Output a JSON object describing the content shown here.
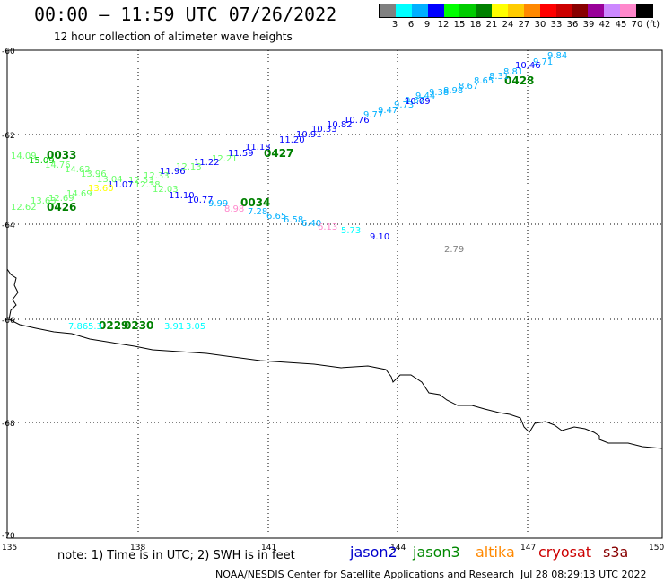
{
  "header": {
    "title": "00:00 – 11:59 UTC 07/26/2022",
    "subtitle": "12 hour collection of altimeter wave heights"
  },
  "legend": {
    "unit": "(ft)",
    "colors": [
      "#808080",
      "#00ffff",
      "#00b0ff",
      "#0000ff",
      "#00ff00",
      "#00cc00",
      "#008000",
      "#ffff00",
      "#ffcc00",
      "#ff8800",
      "#ff0000",
      "#cc0000",
      "#880000",
      "#990099",
      "#cc88ff",
      "#ff88cc",
      "#000000"
    ],
    "labels": [
      "3",
      "6",
      "9",
      "12",
      "15",
      "18",
      "21",
      "24",
      "27",
      "30",
      "33",
      "36",
      "39",
      "42",
      "45",
      "70"
    ]
  },
  "axes": {
    "lat_labels": [
      "-60",
      "-62",
      "-64",
      "-66",
      "-68",
      "-70"
    ],
    "lon_labels": [
      "135",
      "138",
      "141",
      "144",
      "147",
      "150"
    ]
  },
  "map": {
    "time_tags": [
      {
        "text": "0033",
        "color": "#008000"
      },
      {
        "text": "0426",
        "color": "#008000"
      },
      {
        "text": "0427",
        "color": "#008000"
      },
      {
        "text": "0034",
        "color": "#008000"
      },
      {
        "text": "0428",
        "color": "#008000"
      },
      {
        "text": "0229",
        "color": "#008000"
      },
      {
        "text": "0230",
        "color": "#008000"
      }
    ],
    "wave_heights": [
      {
        "text": "9.84",
        "color": "#00b0ff"
      },
      {
        "text": "9.71",
        "color": "#00b0ff"
      },
      {
        "text": "10.46",
        "color": "#0000ff"
      },
      {
        "text": "8.81",
        "color": "#00b0ff"
      },
      {
        "text": "8.31",
        "color": "#00b0ff"
      },
      {
        "text": "8.65",
        "color": "#00b0ff"
      },
      {
        "text": "8.67",
        "color": "#00b0ff"
      },
      {
        "text": "8.98",
        "color": "#00b0ff"
      },
      {
        "text": "9.38",
        "color": "#00b0ff"
      },
      {
        "text": "9.44",
        "color": "#00b0ff"
      },
      {
        "text": "9.67",
        "color": "#00b0ff"
      },
      {
        "text": "9.73",
        "color": "#00b0ff"
      },
      {
        "text": "10.09",
        "color": "#0000ff"
      },
      {
        "text": "9.47",
        "color": "#00b0ff"
      },
      {
        "text": "9.77",
        "color": "#00b0ff"
      },
      {
        "text": "10.76",
        "color": "#0000ff"
      },
      {
        "text": "10.82",
        "color": "#0000ff"
      },
      {
        "text": "10.33",
        "color": "#0000ff"
      },
      {
        "text": "10.91",
        "color": "#0000ff"
      },
      {
        "text": "11.20",
        "color": "#0000ff"
      },
      {
        "text": "11.18",
        "color": "#0000ff"
      },
      {
        "text": "11.59",
        "color": "#0000ff"
      },
      {
        "text": "12.21",
        "color": "#66ff66"
      },
      {
        "text": "11.22",
        "color": "#0000ff"
      },
      {
        "text": "12.13",
        "color": "#66ff66"
      },
      {
        "text": "11.96",
        "color": "#0000ff"
      },
      {
        "text": "12.33",
        "color": "#66ff66"
      },
      {
        "text": "12.53",
        "color": "#66ff66"
      },
      {
        "text": "11.07",
        "color": "#0000ff"
      },
      {
        "text": "13.04",
        "color": "#66ff66"
      },
      {
        "text": "13.96",
        "color": "#66ff66"
      },
      {
        "text": "14.62",
        "color": "#66ff66"
      },
      {
        "text": "14.76",
        "color": "#66ff66"
      },
      {
        "text": "15.09",
        "color": "#00cc00"
      },
      {
        "text": "14.09",
        "color": "#66ff66"
      },
      {
        "text": "12.03",
        "color": "#66ff66"
      },
      {
        "text": "12.38",
        "color": "#66ff66"
      },
      {
        "text": "11.10",
        "color": "#0000ff"
      },
      {
        "text": "10.77",
        "color": "#0000ff"
      },
      {
        "text": "9.99",
        "color": "#00b0ff"
      },
      {
        "text": "8.98",
        "color": "#ff88cc"
      },
      {
        "text": "7.28",
        "color": "#00b0ff"
      },
      {
        "text": "6.65",
        "color": "#00b0ff"
      },
      {
        "text": "6.58",
        "color": "#00b0ff"
      },
      {
        "text": "6.40",
        "color": "#00b0ff"
      },
      {
        "text": "6.13",
        "color": "#ff88cc"
      },
      {
        "text": "5.73",
        "color": "#00ffff"
      },
      {
        "text": "9.10",
        "color": "#0000ff"
      },
      {
        "text": "2.79",
        "color": "#808080"
      },
      {
        "text": "12.62",
        "color": "#66ff66"
      },
      {
        "text": "13.63",
        "color": "#66ff66"
      },
      {
        "text": "12.69",
        "color": "#66ff66"
      },
      {
        "text": "14.69",
        "color": "#66ff66"
      },
      {
        "text": "13.60",
        "color": "#ffff00"
      },
      {
        "text": "7.86",
        "color": "#00ffff"
      },
      {
        "text": "5.3",
        "color": "#00ffff"
      },
      {
        "text": "3.91",
        "color": "#00ffff"
      },
      {
        "text": "3.05",
        "color": "#00ffff"
      }
    ]
  },
  "footer": {
    "note": "note:  1) Time is in UTC;  2) SWH is in feet",
    "satellites": [
      {
        "name": "jason2",
        "color": "#0000cc"
      },
      {
        "name": "jason3",
        "color": "#008800"
      },
      {
        "name": "altika",
        "color": "#ff8800"
      },
      {
        "name": "cryosat",
        "color": "#cc0000"
      },
      {
        "name": "s3a",
        "color": "#880000"
      }
    ],
    "credit": "NOAA/NESDIS Center for Satellite Applications and Research",
    "updated": "Jul 28 08:29:13 UTC 2022"
  }
}
